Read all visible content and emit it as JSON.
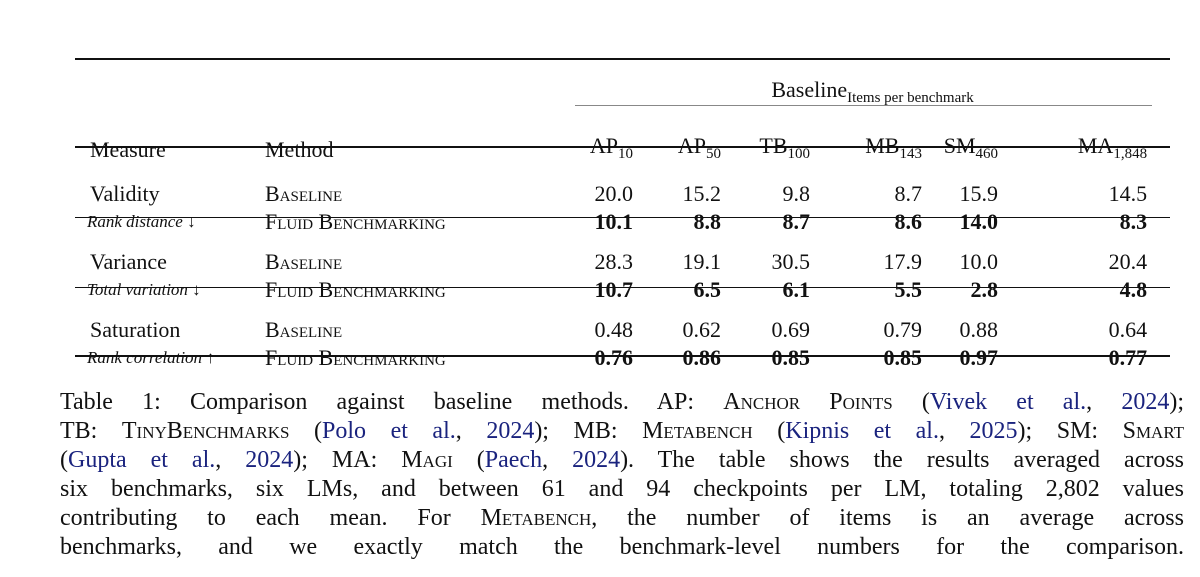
{
  "table": {
    "group_header": {
      "main": "Baseline",
      "sub": "Items per benchmark"
    },
    "headers": {
      "measure": "Measure",
      "method": "Method"
    },
    "columns": [
      {
        "base": "AP",
        "sub": "10"
      },
      {
        "base": "AP",
        "sub": "50"
      },
      {
        "base": "TB",
        "sub": "100"
      },
      {
        "base": "MB",
        "sub": "143"
      },
      {
        "base": "SM",
        "sub": "460"
      },
      {
        "base": "MA",
        "sub": "1,848"
      }
    ],
    "groups": [
      {
        "measure": "Validity",
        "sublabel": "Rank distance ↓",
        "rows": [
          {
            "method": "Baseline",
            "values": [
              "20.0",
              "15.2",
              "9.8",
              "8.7",
              "15.9",
              "14.5"
            ],
            "bold": false
          },
          {
            "method": "Fluid Benchmarking",
            "values": [
              "10.1",
              "8.8",
              "8.7",
              "8.6",
              "14.0",
              "8.3"
            ],
            "bold": true
          }
        ]
      },
      {
        "measure": "Variance",
        "sublabel": "Total variation ↓",
        "rows": [
          {
            "method": "Baseline",
            "values": [
              "28.3",
              "19.1",
              "30.5",
              "17.9",
              "10.0",
              "20.4"
            ],
            "bold": false
          },
          {
            "method": "Fluid Benchmarking",
            "values": [
              "10.7",
              "6.5",
              "6.1",
              "5.5",
              "2.8",
              "4.8"
            ],
            "bold": true
          }
        ]
      },
      {
        "measure": "Saturation",
        "sublabel": "Rank correlation ↑",
        "rows": [
          {
            "method": "Baseline",
            "values": [
              "0.48",
              "0.62",
              "0.69",
              "0.79",
              "0.88",
              "0.64"
            ],
            "bold": false
          },
          {
            "method": "Fluid Benchmarking",
            "values": [
              "0.76",
              "0.86",
              "0.85",
              "0.85",
              "0.97",
              "0.77"
            ],
            "bold": true
          }
        ]
      }
    ]
  },
  "caption": {
    "lines": [
      [
        [
          "t",
          "Table 1: Comparison against baseline methods. AP: "
        ],
        [
          "sc",
          "Anchor Points"
        ],
        [
          "t",
          " ("
        ],
        [
          "c",
          "Vivek et al."
        ],
        [
          "t",
          ", "
        ],
        [
          "c",
          "2024"
        ],
        [
          "t",
          ");"
        ]
      ],
      [
        [
          "t",
          "TB: "
        ],
        [
          "sc",
          "TinyBenchmarks"
        ],
        [
          "t",
          " ("
        ],
        [
          "c",
          "Polo et al."
        ],
        [
          "t",
          ", "
        ],
        [
          "c",
          "2024"
        ],
        [
          "t",
          "); MB: "
        ],
        [
          "sc",
          "Metabench"
        ],
        [
          "t",
          " ("
        ],
        [
          "c",
          "Kipnis et al."
        ],
        [
          "t",
          ", "
        ],
        [
          "c",
          "2025"
        ],
        [
          "t",
          "); SM: "
        ],
        [
          "sc",
          "Smart"
        ]
      ],
      [
        [
          "t",
          "("
        ],
        [
          "c",
          "Gupta et al."
        ],
        [
          "t",
          ", "
        ],
        [
          "c",
          "2024"
        ],
        [
          "t",
          "); MA: "
        ],
        [
          "sc",
          "Magi"
        ],
        [
          "t",
          " ("
        ],
        [
          "c",
          "Paech"
        ],
        [
          "t",
          ", "
        ],
        [
          "c",
          "2024"
        ],
        [
          "t",
          "). The table shows the results averaged across"
        ]
      ],
      [
        [
          "t",
          "six benchmarks, six LMs, and between 61 and 94 checkpoints per LM, totaling 2,802 values"
        ]
      ],
      [
        [
          "t",
          "contributing to each mean.  For "
        ],
        [
          "sc",
          "Metabench"
        ],
        [
          "t",
          ", the number of items is an average across"
        ]
      ],
      [
        [
          "t",
          "benchmarks, and we exactly match the benchmark-level numbers for the comparison."
        ]
      ]
    ]
  },
  "colors": {
    "text": "#111111",
    "citation": "#1a237e"
  }
}
